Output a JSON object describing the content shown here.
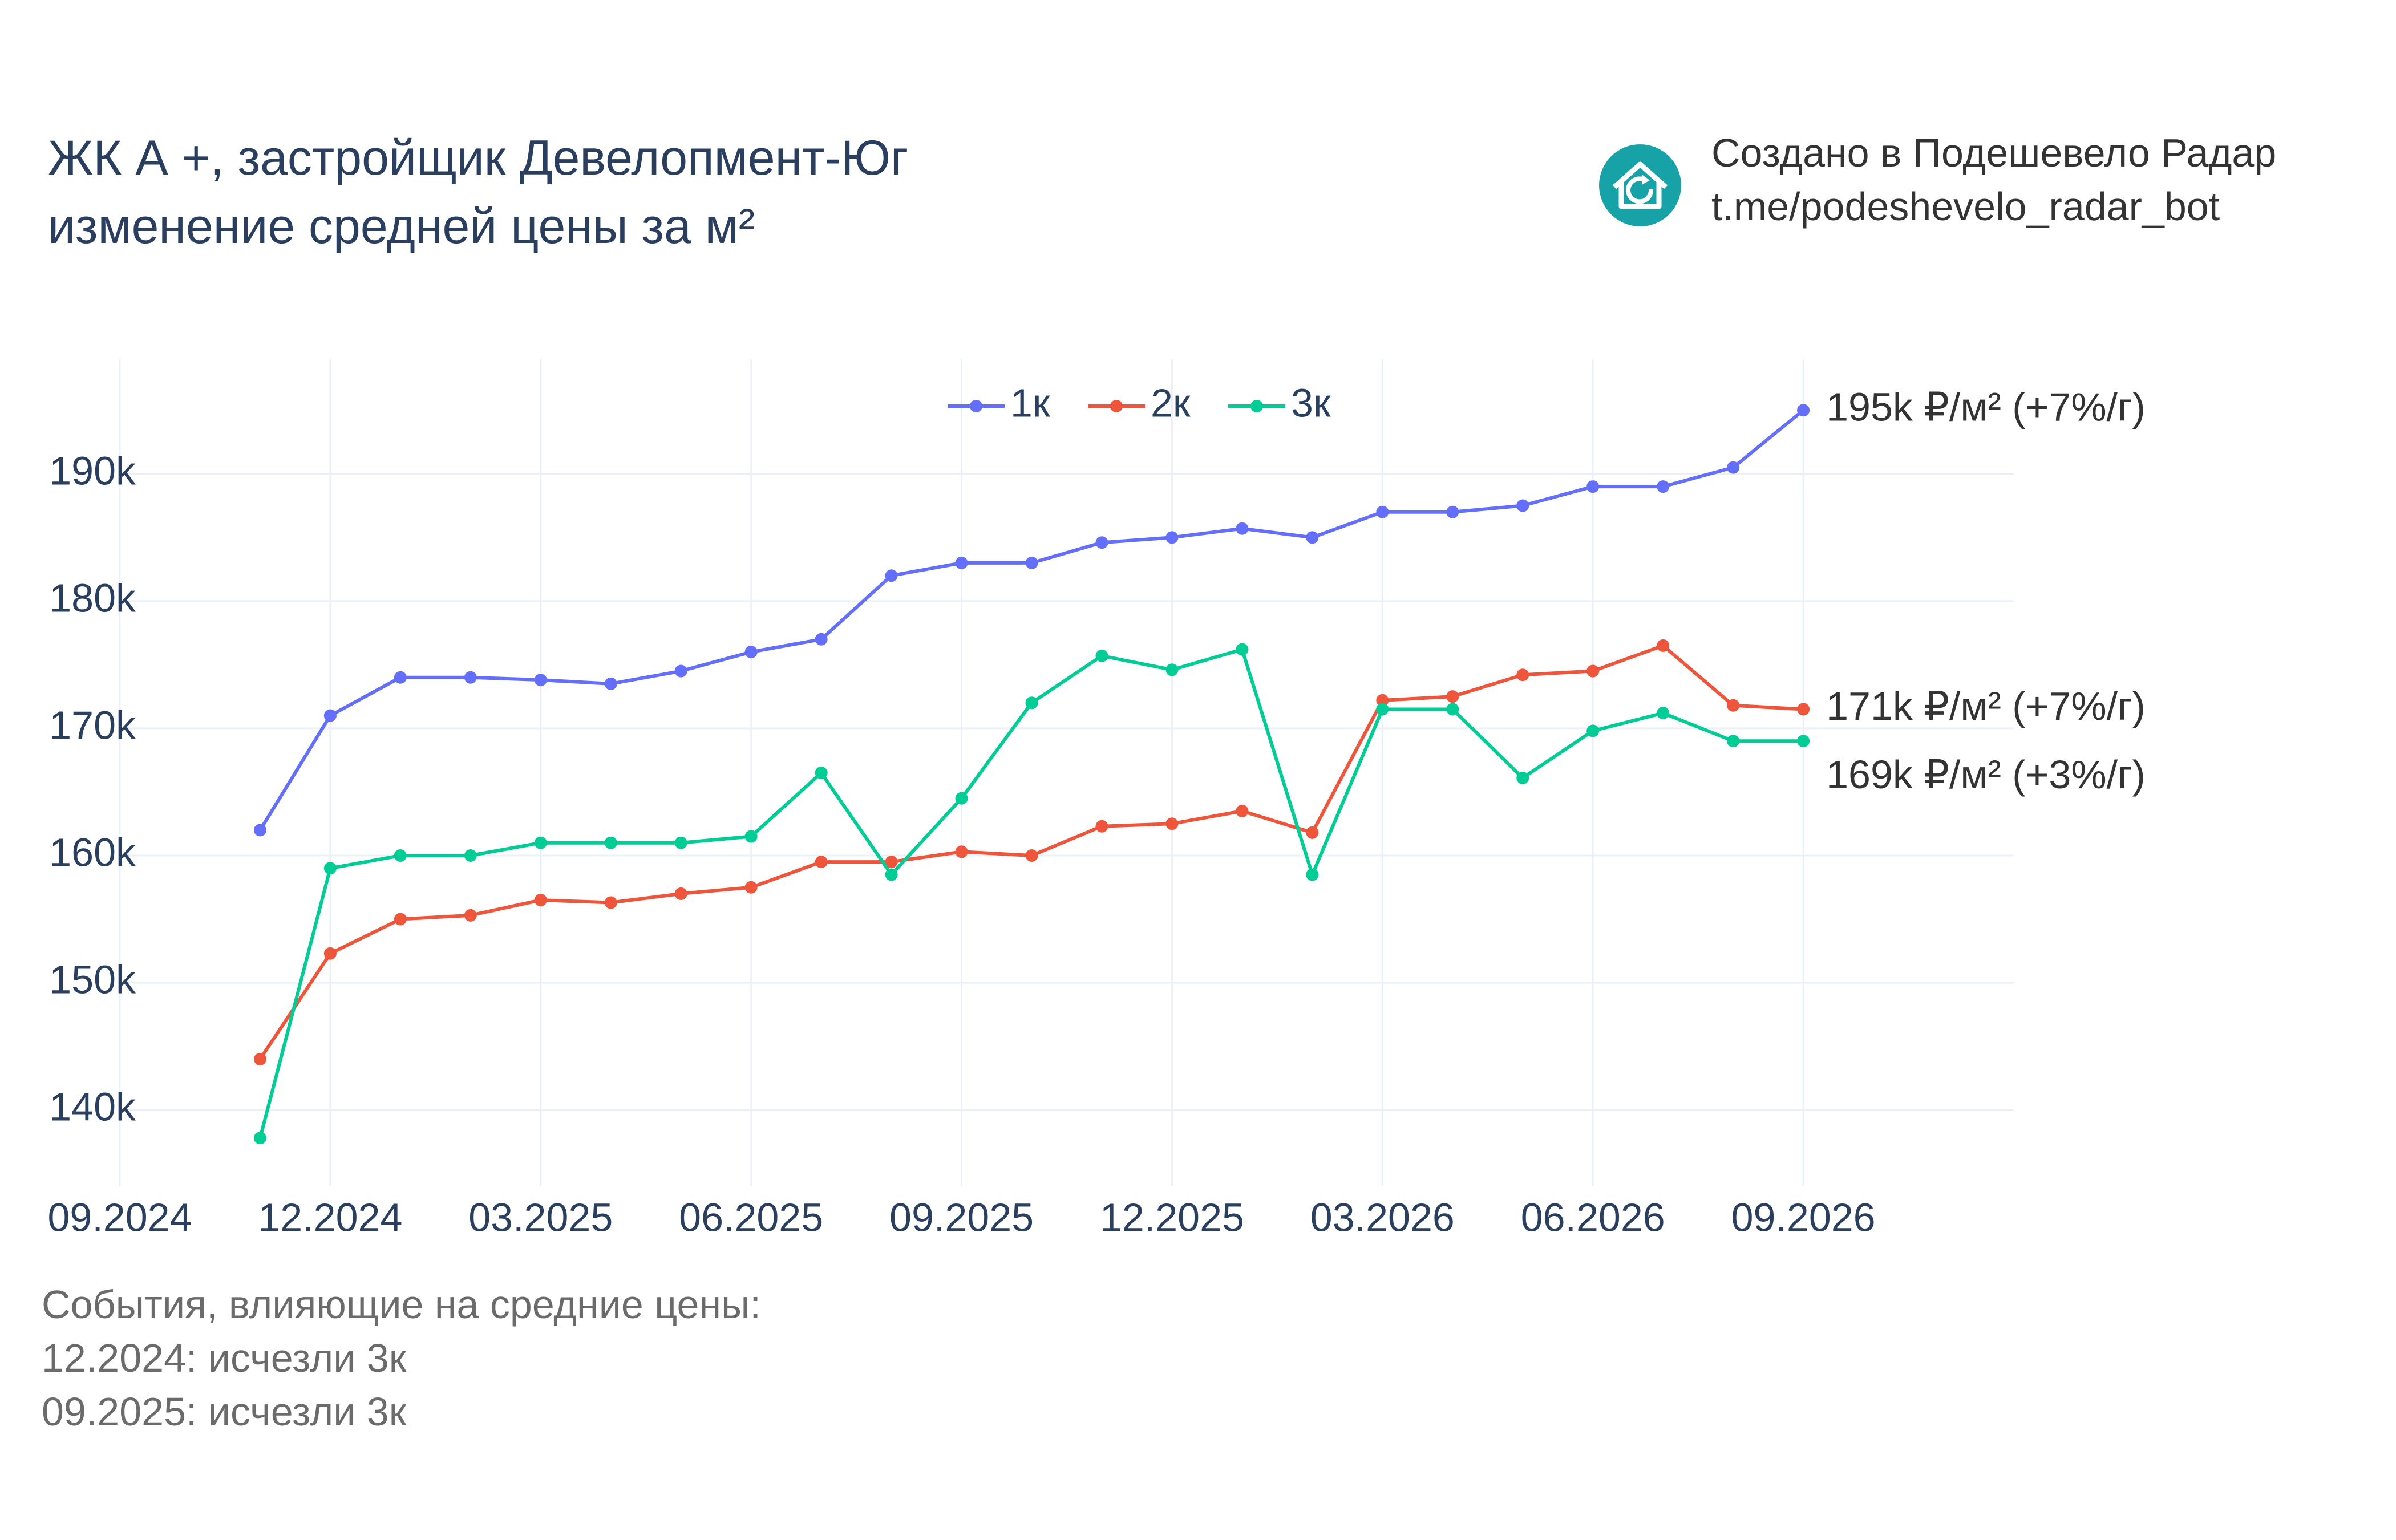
{
  "title": {
    "line1": "ЖК А +, застройщик Девелопмент-Юг",
    "line2": "изменение средней цены за м²"
  },
  "brand": {
    "line1": "Создано в Подешевело Радар",
    "line2": "t.me/podeshevelo_radar_bot",
    "logo_icon": "house-refresh-icon",
    "logo_color": "#17a2a8"
  },
  "events": {
    "header": "События, влияющие на средние цены:",
    "items": [
      "12.2024: исчезли 3к",
      "09.2025: исчезли 3к"
    ]
  },
  "chart_data": {
    "type": "line",
    "x": [
      "2024-11",
      "2024-12",
      "2025-01",
      "2025-02",
      "2025-03",
      "2025-04",
      "2025-05",
      "2025-06",
      "2025-07",
      "2025-08",
      "2025-09",
      "2025-10",
      "2025-11",
      "2025-12",
      "2026-01",
      "2026-02",
      "2026-03",
      "2026-04",
      "2026-05",
      "2026-06",
      "2026-07",
      "2026-08",
      "2026-09"
    ],
    "series": [
      {
        "name": "1к",
        "color": "#636efa",
        "values": [
          162000,
          171000,
          174000,
          174000,
          173800,
          173500,
          174500,
          176000,
          177000,
          182000,
          183000,
          183000,
          184600,
          185000,
          185700,
          185000,
          187000,
          187000,
          187500,
          189000,
          189000,
          190500,
          195000
        ],
        "end_label": "195k ₽/м² (+7%/г)"
      },
      {
        "name": "2к",
        "color": "#ef553b",
        "values": [
          144000,
          152300,
          155000,
          155300,
          156500,
          156300,
          157000,
          157500,
          159500,
          159500,
          160300,
          160000,
          162300,
          162500,
          163500,
          161800,
          172200,
          172500,
          174200,
          174500,
          176500,
          171800,
          171500
        ],
        "end_label": "171k ₽/м² (+7%/г)"
      },
      {
        "name": "3к",
        "color": "#00cc96",
        "values": [
          137800,
          159000,
          160000,
          160000,
          161000,
          161000,
          161000,
          161500,
          166500,
          158500,
          164500,
          172000,
          175700,
          174600,
          176200,
          158500,
          171500,
          171500,
          166100,
          169800,
          171200,
          169000,
          169000
        ],
        "end_label": "169k ₽/м² (+3%/г)"
      }
    ],
    "x_ticks": [
      "09.2024",
      "12.2024",
      "03.2025",
      "06.2025",
      "09.2025",
      "12.2025",
      "03.2026",
      "06.2026",
      "09.2026"
    ],
    "x_tick_values": [
      "2024-09",
      "2024-12",
      "2025-03",
      "2025-06",
      "2025-09",
      "2025-12",
      "2026-03",
      "2026-06",
      "2026-09"
    ],
    "y_ticks": [
      "140k",
      "150k",
      "160k",
      "170k",
      "180k",
      "190k"
    ],
    "y_tick_values": [
      140000,
      150000,
      160000,
      170000,
      180000,
      190000
    ],
    "xlim": [
      "2024-09",
      "2026-12"
    ],
    "ylim": [
      134000,
      199000
    ],
    "grid": true,
    "legend_position": "top-center"
  }
}
